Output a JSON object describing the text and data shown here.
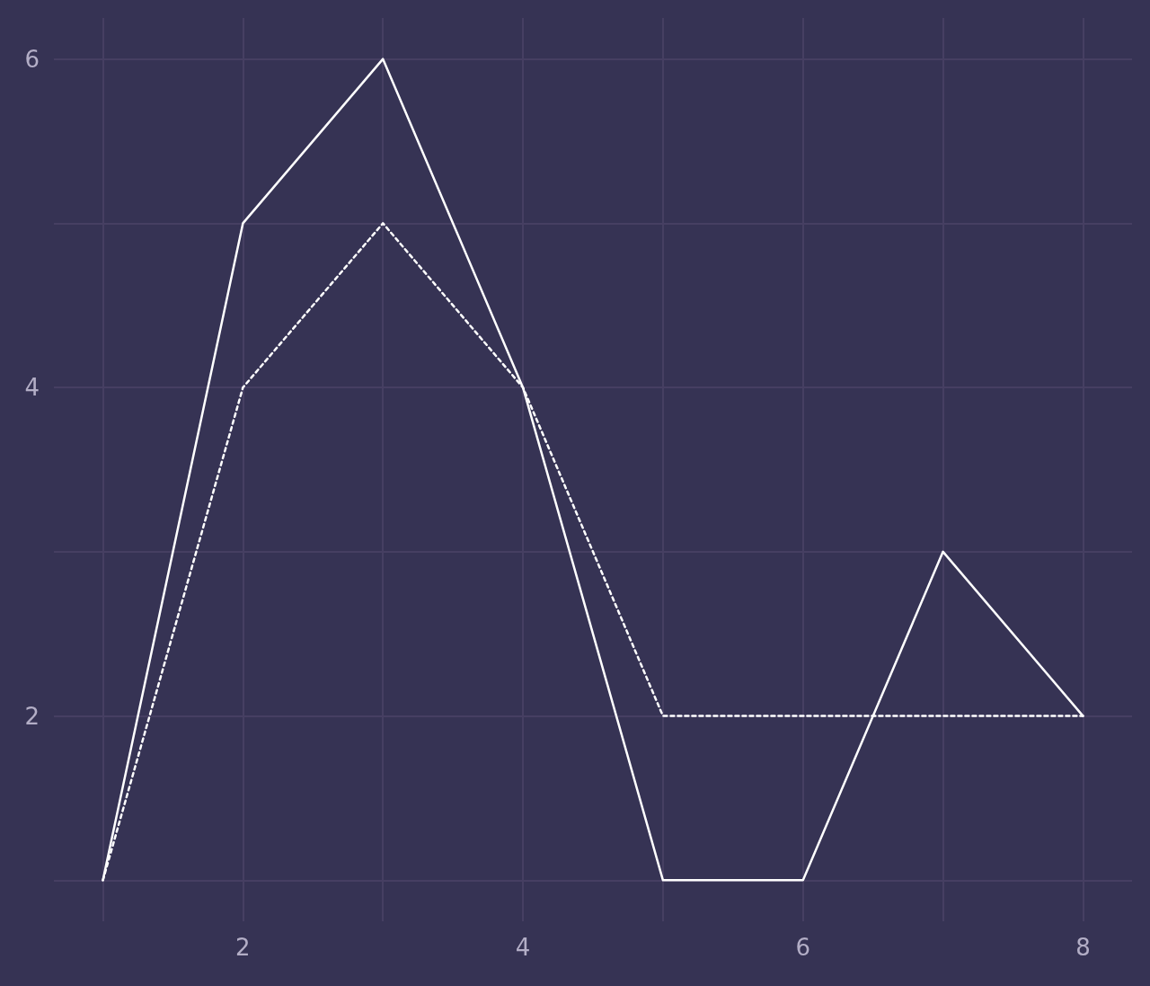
{
  "chart_data": {
    "type": "line",
    "x": [
      1,
      2,
      3,
      4,
      5,
      6,
      7,
      8
    ],
    "series": [
      {
        "color": "#ffffff",
        "line_style": "solid",
        "values": [
          1,
          5,
          6,
          4,
          1,
          1,
          3,
          2
        ]
      },
      {
        "color": "#ffffff",
        "line_style": "dashed",
        "values": [
          1,
          4,
          5,
          4,
          2,
          2,
          2,
          2
        ]
      }
    ],
    "xlim": [
      0.65,
      8.35
    ],
    "ylim": [
      0.75,
      6.25
    ],
    "xticks": [
      {
        "value": 1,
        "label": null
      },
      2,
      {
        "value": 3,
        "label": null
      },
      4,
      {
        "value": 5,
        "label": null
      },
      6,
      {
        "value": 7,
        "label": null
      },
      8
    ],
    "yticks": [
      {
        "value": 1,
        "label": null
      },
      2,
      {
        "value": 3,
        "label": null
      },
      4,
      {
        "value": 5,
        "label": null
      },
      6
    ],
    "grid": true,
    "marker": "none"
  }
}
